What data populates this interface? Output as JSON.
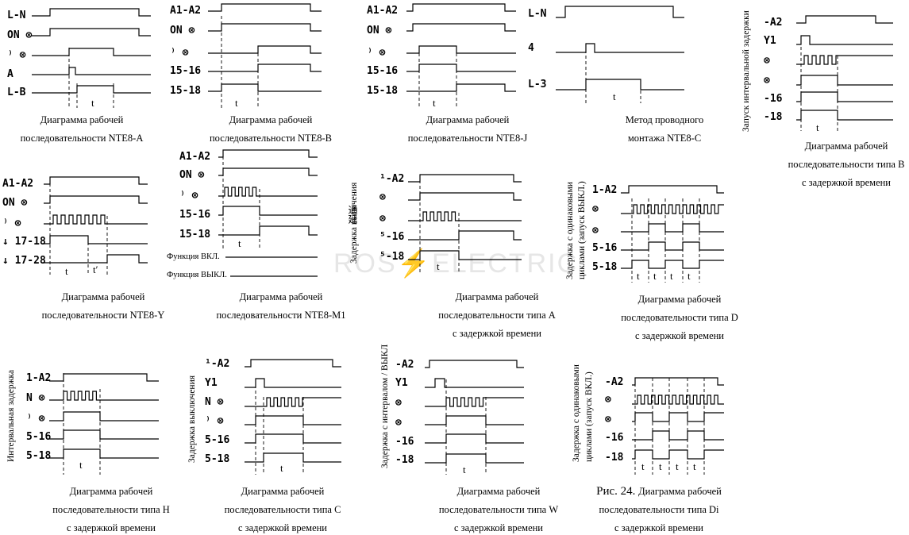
{
  "watermark": {
    "left": "ROS",
    "mid": "⚡",
    "right": "ELECTRIC"
  },
  "diagrams": [
    {
      "id": "nte8-a",
      "labels": [
        "L-N",
        "ON ⊗",
        "⁾ ⊗",
        "A",
        "L-B"
      ],
      "t_labels": [
        "t"
      ],
      "caption": [
        "Диаграмма рабочей",
        "последовательности NTE8-A"
      ]
    },
    {
      "id": "nte8-b",
      "labels": [
        "A1-A2",
        "ON ⊗",
        "⁾ ⊗",
        "15-16",
        "15-18"
      ],
      "t_labels": [
        "t"
      ],
      "caption": [
        "Диаграмма рабочей",
        "последовательности NTE8-B"
      ]
    },
    {
      "id": "nte8-j",
      "labels": [
        "A1-A2",
        "ON ⊗",
        "⁾ ⊗",
        "15-16",
        "15-18"
      ],
      "t_labels": [
        "t"
      ],
      "caption": [
        "Диаграмма рабочей",
        "последовательности NTE8-J"
      ]
    },
    {
      "id": "nte8-c",
      "labels": [
        "L-N",
        "4",
        "L-3"
      ],
      "t_labels": [
        "t"
      ],
      "caption": [
        "Метод проводного",
        "монтажа NTE8-C"
      ]
    },
    {
      "id": "type-b",
      "side": "Запуск интервальной задержки",
      "labels": [
        "-A2",
        "Y1",
        "⊗",
        "⊗",
        "-16",
        "-18"
      ],
      "t_labels": [
        "t"
      ],
      "caption": [
        "Диаграмма рабочей",
        "последовательности типа B",
        "с задержкой времени"
      ]
    },
    {
      "id": "nte8-y",
      "labels": [
        "A1-A2",
        "ON ⊗",
        "⁾ ⊗",
        "↓ 17-18",
        "↓ 17-28"
      ],
      "t_labels": [
        "t",
        "t′"
      ],
      "caption": [
        "Диаграмма рабочей",
        "последовательности NTE8-Y"
      ]
    },
    {
      "id": "nte8-m1",
      "labels": [
        "A1-A2",
        "ON ⊗",
        "⁾ ⊗",
        "15-16",
        "15-18"
      ],
      "t_labels": [
        "t"
      ],
      "extra": [
        "Функция ВКЛ.",
        "Функция ВЫКЛ."
      ],
      "caption": [
        "Диаграмма рабочей",
        "последовательности NTE8-M1"
      ]
    },
    {
      "id": "type-a",
      "side": "Задержка включения",
      "cjk": "通延",
      "labels": [
        "¹-A2",
        "⊗",
        "⊗",
        "⁵-16",
        "⁵-18"
      ],
      "t_labels": [
        "t"
      ],
      "caption": [
        "Диаграмма рабочей",
        "последовательности типа A",
        "с задержкой времени"
      ]
    },
    {
      "id": "type-d",
      "side": "Задержка с одинаковыми",
      "side2": "циклами (запуск ВЫКЛ.)",
      "labels": [
        "1-A2",
        "⊗",
        "⊗",
        "5-16",
        "5-18"
      ],
      "t_labels": [
        "t",
        "t",
        "t",
        "t"
      ],
      "caption": [
        "Диаграмма рабочей",
        "последовательности типа D",
        "с задержкой времени"
      ]
    },
    {
      "id": "type-h",
      "side": "Интервальная задержка",
      "labels": [
        "1-A2",
        "N ⊗",
        "⁾ ⊗",
        "5-16",
        "5-18"
      ],
      "t_labels": [
        "t"
      ],
      "caption": [
        "Диаграмма рабочей",
        "последовательности типа H",
        "с задержкой времени"
      ]
    },
    {
      "id": "type-c",
      "side": "Задержка выключения",
      "labels": [
        "¹-A2",
        "Y1",
        "N ⊗",
        "⁾ ⊗",
        "5-16",
        "5-18"
      ],
      "t_labels": [
        "t"
      ],
      "caption": [
        "Диаграмма рабочей",
        "последовательности типа C",
        "с задержкой времени"
      ]
    },
    {
      "id": "type-w",
      "side": "Задержка с интервалом / ВЫКЛ",
      "labels": [
        "-A2",
        "Y1",
        "⊗",
        "⊗",
        "-16",
        "-18"
      ],
      "t_labels": [
        "t"
      ],
      "caption": [
        "Диаграмма рабочей",
        "последовательности типа W",
        "с задержкой времени"
      ]
    },
    {
      "id": "type-di",
      "side": "Задержка с одинаковыми",
      "side2": "циклами (запуск ВКЛ.)",
      "labels": [
        "-A2",
        "⊗",
        "⊗",
        "-16",
        "-18"
      ],
      "t_labels": [
        "t",
        "t",
        "t",
        "t"
      ],
      "caption_head": "Рис. 24.",
      "caption": [
        "Диаграмма рабочей",
        "последовательности типа Di",
        "с задержкой времени"
      ]
    }
  ]
}
